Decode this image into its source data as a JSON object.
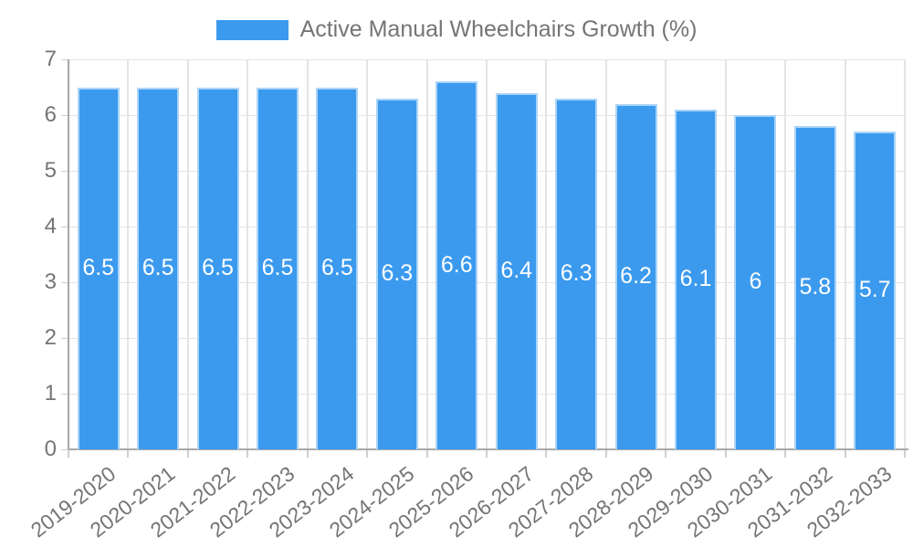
{
  "chart_data": {
    "type": "bar",
    "title": "",
    "legend": {
      "label": "Active Manual Wheelchairs Growth (%)",
      "position": "top"
    },
    "categories": [
      "2019-2020",
      "2020-2021",
      "2021-2022",
      "2022-2023",
      "2023-2024",
      "2024-2025",
      "2025-2026",
      "2026-2027",
      "2027-2028",
      "2028-2029",
      "2029-2030",
      "2030-2031",
      "2031-2032",
      "2032-2033"
    ],
    "series": [
      {
        "name": "Active Manual Wheelchairs Growth (%)",
        "values": [
          6.5,
          6.5,
          6.5,
          6.5,
          6.5,
          6.3,
          6.6,
          6.4,
          6.3,
          6.2,
          6.1,
          6,
          5.8,
          5.7
        ]
      }
    ],
    "bar_labels": [
      "6.5",
      "6.5",
      "6.5",
      "6.5",
      "6.5",
      "6.3",
      "6.6",
      "6.4",
      "6.3",
      "6.2",
      "6.1",
      "6",
      "5.8",
      "5.7"
    ],
    "xlabel": "",
    "ylabel": "",
    "ylim": [
      0,
      7
    ],
    "yticks": [
      0,
      1,
      2,
      3,
      4,
      5,
      6,
      7
    ],
    "grid": true,
    "colors": {
      "bar_fill": "#3B9AEE",
      "bar_border": "#ABD4F8",
      "grid_line": "#E4E4E4",
      "axis_line": "#A9A9A9",
      "tick_mark": "#CFCFCF",
      "tick_text": "#757575",
      "value_label_text": "#FFFFFF",
      "legend_text": "#757575",
      "background": "#FFFFFF"
    }
  }
}
